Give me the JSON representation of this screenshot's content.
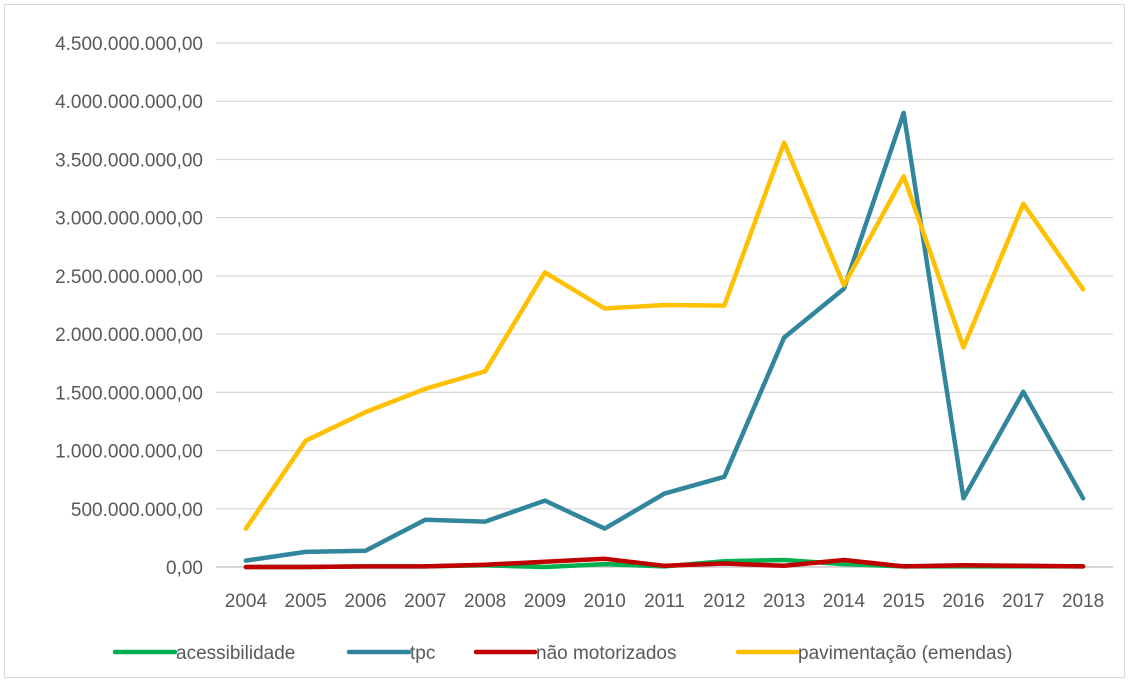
{
  "chart_data": {
    "type": "line",
    "title": "",
    "xlabel": "",
    "ylabel": "",
    "categories": [
      "2004",
      "2005",
      "2006",
      "2007",
      "2008",
      "2009",
      "2010",
      "2011",
      "2012",
      "2013",
      "2014",
      "2015",
      "2016",
      "2017",
      "2018"
    ],
    "ylim": [
      0,
      4500000000
    ],
    "y_ticks": [
      0,
      500000000,
      1000000000,
      1500000000,
      2000000000,
      2500000000,
      3000000000,
      3500000000,
      4000000000,
      4500000000
    ],
    "y_tick_labels": [
      "0,00",
      "500.000.000,00",
      "1.000.000.000,00",
      "1.500.000.000,00",
      "2.000.000.000,00",
      "2.500.000.000,00",
      "3.000.000.000,00",
      "3.500.000.000,00",
      "4.000.000.000,00",
      "4.500.000.000,00"
    ],
    "grid": true,
    "legend_position": "bottom",
    "series": [
      {
        "name": "acessibilidade",
        "color": "#00b050",
        "values": [
          0,
          0,
          5000000,
          5000000,
          15000000,
          0,
          25000000,
          5000000,
          50000000,
          60000000,
          25000000,
          5000000,
          5000000,
          5000000,
          5000000
        ]
      },
      {
        "name": "tpc",
        "color": "#31859c",
        "values": [
          55000000,
          130000000,
          140000000,
          405000000,
          390000000,
          570000000,
          330000000,
          630000000,
          775000000,
          1970000000,
          2390000000,
          3900000000,
          590000000,
          1505000000,
          590000000
        ]
      },
      {
        "name": "não motorizados",
        "color": "#c00000",
        "values": [
          0,
          0,
          5000000,
          5000000,
          20000000,
          45000000,
          70000000,
          10000000,
          30000000,
          10000000,
          60000000,
          5000000,
          15000000,
          10000000,
          5000000
        ]
      },
      {
        "name": "pavimentação (emendas)",
        "color": "#ffc000",
        "values": [
          330000000,
          1085000000,
          1330000000,
          1530000000,
          1680000000,
          2530000000,
          2220000000,
          2250000000,
          2245000000,
          3645000000,
          2420000000,
          3355000000,
          1885000000,
          3120000000,
          2385000000
        ]
      }
    ]
  }
}
